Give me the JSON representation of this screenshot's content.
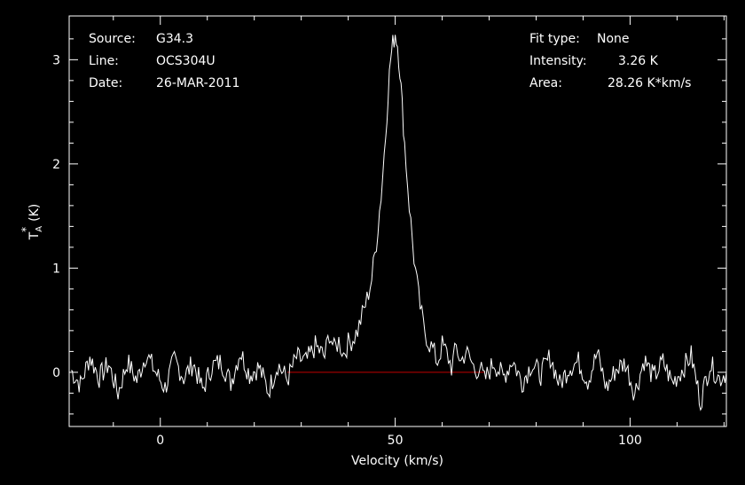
{
  "colors": {
    "background": "#000000",
    "frame": "#ffffff",
    "spectrum": "#ffffff",
    "baseline": "#c00000"
  },
  "annotations_left": [
    {
      "key": "Source:",
      "value": "G34.3"
    },
    {
      "key": "Line:",
      "value": "OCS304U"
    },
    {
      "key": "Date:",
      "value": "26-MAR-2011"
    }
  ],
  "annotations_right": [
    {
      "key": "Fit type:",
      "value": "None"
    },
    {
      "key": "Intensity:",
      "value": "3.26 K"
    },
    {
      "key": "Area:",
      "value": "28.26 K*km/s"
    }
  ],
  "chart_data": {
    "type": "line",
    "xlabel": "Velocity (km/s)",
    "ylabel": "T*A (K)",
    "xlim": [
      -19.4,
      120.5
    ],
    "ylim": [
      -0.52,
      3.42
    ],
    "xticks": [
      0,
      50,
      100
    ],
    "yticks": [
      0,
      1,
      2,
      3
    ],
    "grid": false,
    "series": [
      {
        "role": "spectrum",
        "x": [
          -19,
          -17,
          -15,
          -13,
          -11,
          -9,
          -7,
          -5,
          -3,
          -1,
          1,
          3,
          5,
          7,
          9,
          11,
          13,
          15,
          17,
          19,
          21,
          23,
          25,
          27,
          29,
          31,
          33,
          35,
          36,
          37,
          38,
          39,
          40,
          41,
          42,
          43,
          44,
          45,
          46,
          47,
          48,
          48.5,
          49,
          49.5,
          50,
          50.5,
          51,
          51.5,
          52,
          53,
          54,
          55,
          56,
          57,
          58,
          59,
          60,
          61,
          62,
          63,
          64,
          65,
          66,
          67,
          68,
          69,
          71,
          73,
          75,
          77,
          79,
          81,
          83,
          85,
          87,
          89,
          91,
          93,
          95,
          97,
          99,
          101,
          103,
          105,
          107,
          109,
          111,
          113,
          115,
          117,
          119,
          120.5
        ],
        "y": [
          0.02,
          -0.12,
          0.15,
          -0.05,
          0.08,
          -0.2,
          0.1,
          -0.08,
          0.18,
          0.0,
          -0.15,
          0.12,
          -0.05,
          0.09,
          -0.17,
          0.06,
          0.1,
          -0.1,
          0.2,
          -0.02,
          0.05,
          -0.18,
          0.08,
          -0.07,
          0.14,
          0.1,
          0.25,
          0.15,
          0.38,
          0.22,
          0.3,
          0.18,
          0.28,
          0.32,
          0.4,
          0.55,
          0.7,
          0.9,
          1.25,
          1.7,
          2.3,
          2.7,
          3.0,
          3.15,
          3.26,
          3.15,
          2.9,
          2.55,
          2.2,
          1.6,
          1.1,
          0.72,
          0.45,
          0.3,
          0.22,
          0.1,
          0.26,
          0.18,
          0.05,
          0.24,
          0.1,
          0.2,
          0.12,
          0.02,
          0.05,
          -0.08,
          0.1,
          -0.05,
          0.12,
          -0.1,
          0.08,
          -0.02,
          0.15,
          -0.12,
          0.05,
          0.1,
          -0.08,
          0.18,
          -0.15,
          0.03,
          0.09,
          -0.2,
          0.12,
          -0.05,
          0.1,
          -0.1,
          0.02,
          0.16,
          -0.28,
          0.08,
          -0.06,
          0.0
        ]
      },
      {
        "role": "baseline",
        "x": [
          27,
          69
        ],
        "y": [
          0,
          0
        ]
      }
    ]
  }
}
